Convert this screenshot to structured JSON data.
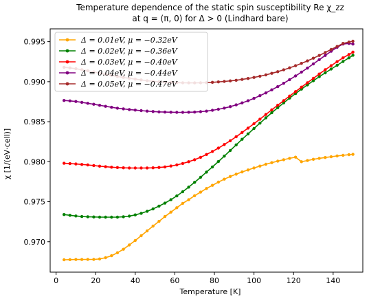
{
  "chart_data": {
    "type": "line",
    "title_line1": "Temperature dependence of the static spin susceptibility Re χ_zz",
    "title_line2": "at q = (π, 0) for Δ > 0 (Lindhard bare)",
    "xlabel": "Temperature [K]",
    "ylabel": "χ [1/(eV·cell)]",
    "xlim": [
      -3,
      155
    ],
    "ylim": [
      0.9662,
      0.9966
    ],
    "xticks": [
      0,
      20,
      40,
      60,
      80,
      100,
      120,
      140
    ],
    "yticks": [
      0.97,
      0.975,
      0.98,
      0.985,
      0.99,
      0.995
    ],
    "ytick_labels": [
      "0.970",
      "0.975",
      "0.980",
      "0.985",
      "0.990",
      "0.995"
    ],
    "legend_position": "top-left",
    "x": [
      4,
      7,
      10,
      13,
      16,
      19,
      22,
      25,
      28,
      31,
      34,
      37,
      40,
      43,
      46,
      49,
      52,
      55,
      58,
      61,
      64,
      67,
      70,
      73,
      76,
      79,
      82,
      85,
      88,
      91,
      94,
      97,
      100,
      103,
      106,
      109,
      112,
      115,
      118,
      121,
      124,
      127,
      130,
      133,
      136,
      139,
      142,
      145,
      148,
      150
    ],
    "series": [
      {
        "name": "Δ = 0.01eV, μ = −0.32eV",
        "color": "#FFA500",
        "values": [
          0.96775,
          0.96776,
          0.96778,
          0.96778,
          0.96779,
          0.96779,
          0.96785,
          0.968,
          0.96825,
          0.96862,
          0.96906,
          0.9696,
          0.97015,
          0.97075,
          0.97135,
          0.97195,
          0.97255,
          0.97315,
          0.9737,
          0.97425,
          0.9748,
          0.97525,
          0.97575,
          0.9762,
          0.97665,
          0.97705,
          0.97745,
          0.97782,
          0.97815,
          0.97845,
          0.97872,
          0.97897,
          0.97922,
          0.97945,
          0.97968,
          0.97988,
          0.98007,
          0.98025,
          0.98042,
          0.98057,
          0.98,
          0.98015,
          0.9803,
          0.98042,
          0.98052,
          0.98062,
          0.98072,
          0.9808,
          0.98088,
          0.98092
        ]
      },
      {
        "name": "Δ = 0.02eV, μ = −0.36eV",
        "color": "#008000",
        "values": [
          0.9734,
          0.9733,
          0.97322,
          0.97315,
          0.97312,
          0.9731,
          0.97308,
          0.97307,
          0.97307,
          0.97308,
          0.97312,
          0.9732,
          0.97335,
          0.97355,
          0.9738,
          0.9741,
          0.97445,
          0.97482,
          0.97525,
          0.97572,
          0.97625,
          0.97682,
          0.97742,
          0.97805,
          0.9787,
          0.97935,
          0.98002,
          0.9807,
          0.9814,
          0.9821,
          0.9828,
          0.98348,
          0.98415,
          0.98482,
          0.98548,
          0.98612,
          0.98675,
          0.98735,
          0.98795,
          0.98852,
          0.98907,
          0.9896,
          0.99012,
          0.99062,
          0.9911,
          0.99158,
          0.99205,
          0.99252,
          0.99298,
          0.9933
        ]
      },
      {
        "name": "Δ = 0.03eV, μ = −0.40eV",
        "color": "#FF0000",
        "values": [
          0.9798,
          0.97976,
          0.97972,
          0.97966,
          0.9796,
          0.97952,
          0.97944,
          0.97937,
          0.97931,
          0.97927,
          0.97924,
          0.97922,
          0.97921,
          0.97921,
          0.97922,
          0.97924,
          0.97928,
          0.97935,
          0.97946,
          0.9796,
          0.97978,
          0.98,
          0.98025,
          0.98055,
          0.9809,
          0.98128,
          0.9817,
          0.98215,
          0.98262,
          0.98312,
          0.98365,
          0.9842,
          0.98475,
          0.98532,
          0.9859,
          0.98648,
          0.98706,
          0.98763,
          0.9882,
          0.98876,
          0.98932,
          0.98987,
          0.99042,
          0.99096,
          0.99149,
          0.992,
          0.9925,
          0.99298,
          0.9934,
          0.9937
        ]
      },
      {
        "name": "Δ = 0.04eV, μ = −0.44eV",
        "color": "#800080",
        "values": [
          0.98765,
          0.9876,
          0.98752,
          0.98742,
          0.9873,
          0.98718,
          0.98705,
          0.98692,
          0.9868,
          0.98669,
          0.9866,
          0.98652,
          0.98645,
          0.98638,
          0.98632,
          0.98627,
          0.98623,
          0.9862,
          0.98618,
          0.98617,
          0.98617,
          0.98618,
          0.9862,
          0.98625,
          0.98632,
          0.98642,
          0.98655,
          0.9867,
          0.98688,
          0.9871,
          0.98735,
          0.98762,
          0.98792,
          0.98825,
          0.9886,
          0.98898,
          0.98938,
          0.9898,
          0.99025,
          0.99072,
          0.9912,
          0.9917,
          0.99222,
          0.99275,
          0.99328,
          0.9938,
          0.9943,
          0.9947,
          0.99478,
          0.9947
        ]
      },
      {
        "name": "Δ = 0.05eV, μ = −0.47eV",
        "color": "#A52A2A",
        "values": [
          0.9918,
          0.99172,
          0.99162,
          0.9915,
          0.99137,
          0.99122,
          0.99108,
          0.99093,
          0.99079,
          0.99065,
          0.99053,
          0.99042,
          0.99032,
          0.99022,
          0.99012,
          0.99005,
          0.98999,
          0.98994,
          0.98991,
          0.98988,
          0.98986,
          0.98985,
          0.98985,
          0.98986,
          0.98988,
          0.98992,
          0.98997,
          0.99003,
          0.9901,
          0.99018,
          0.99028,
          0.9904,
          0.99053,
          0.99068,
          0.99085,
          0.99104,
          0.99125,
          0.99148,
          0.99173,
          0.992,
          0.99229,
          0.9926,
          0.99293,
          0.99328,
          0.99365,
          0.99402,
          0.9944,
          0.99478,
          0.99495,
          0.99505
        ]
      }
    ]
  }
}
